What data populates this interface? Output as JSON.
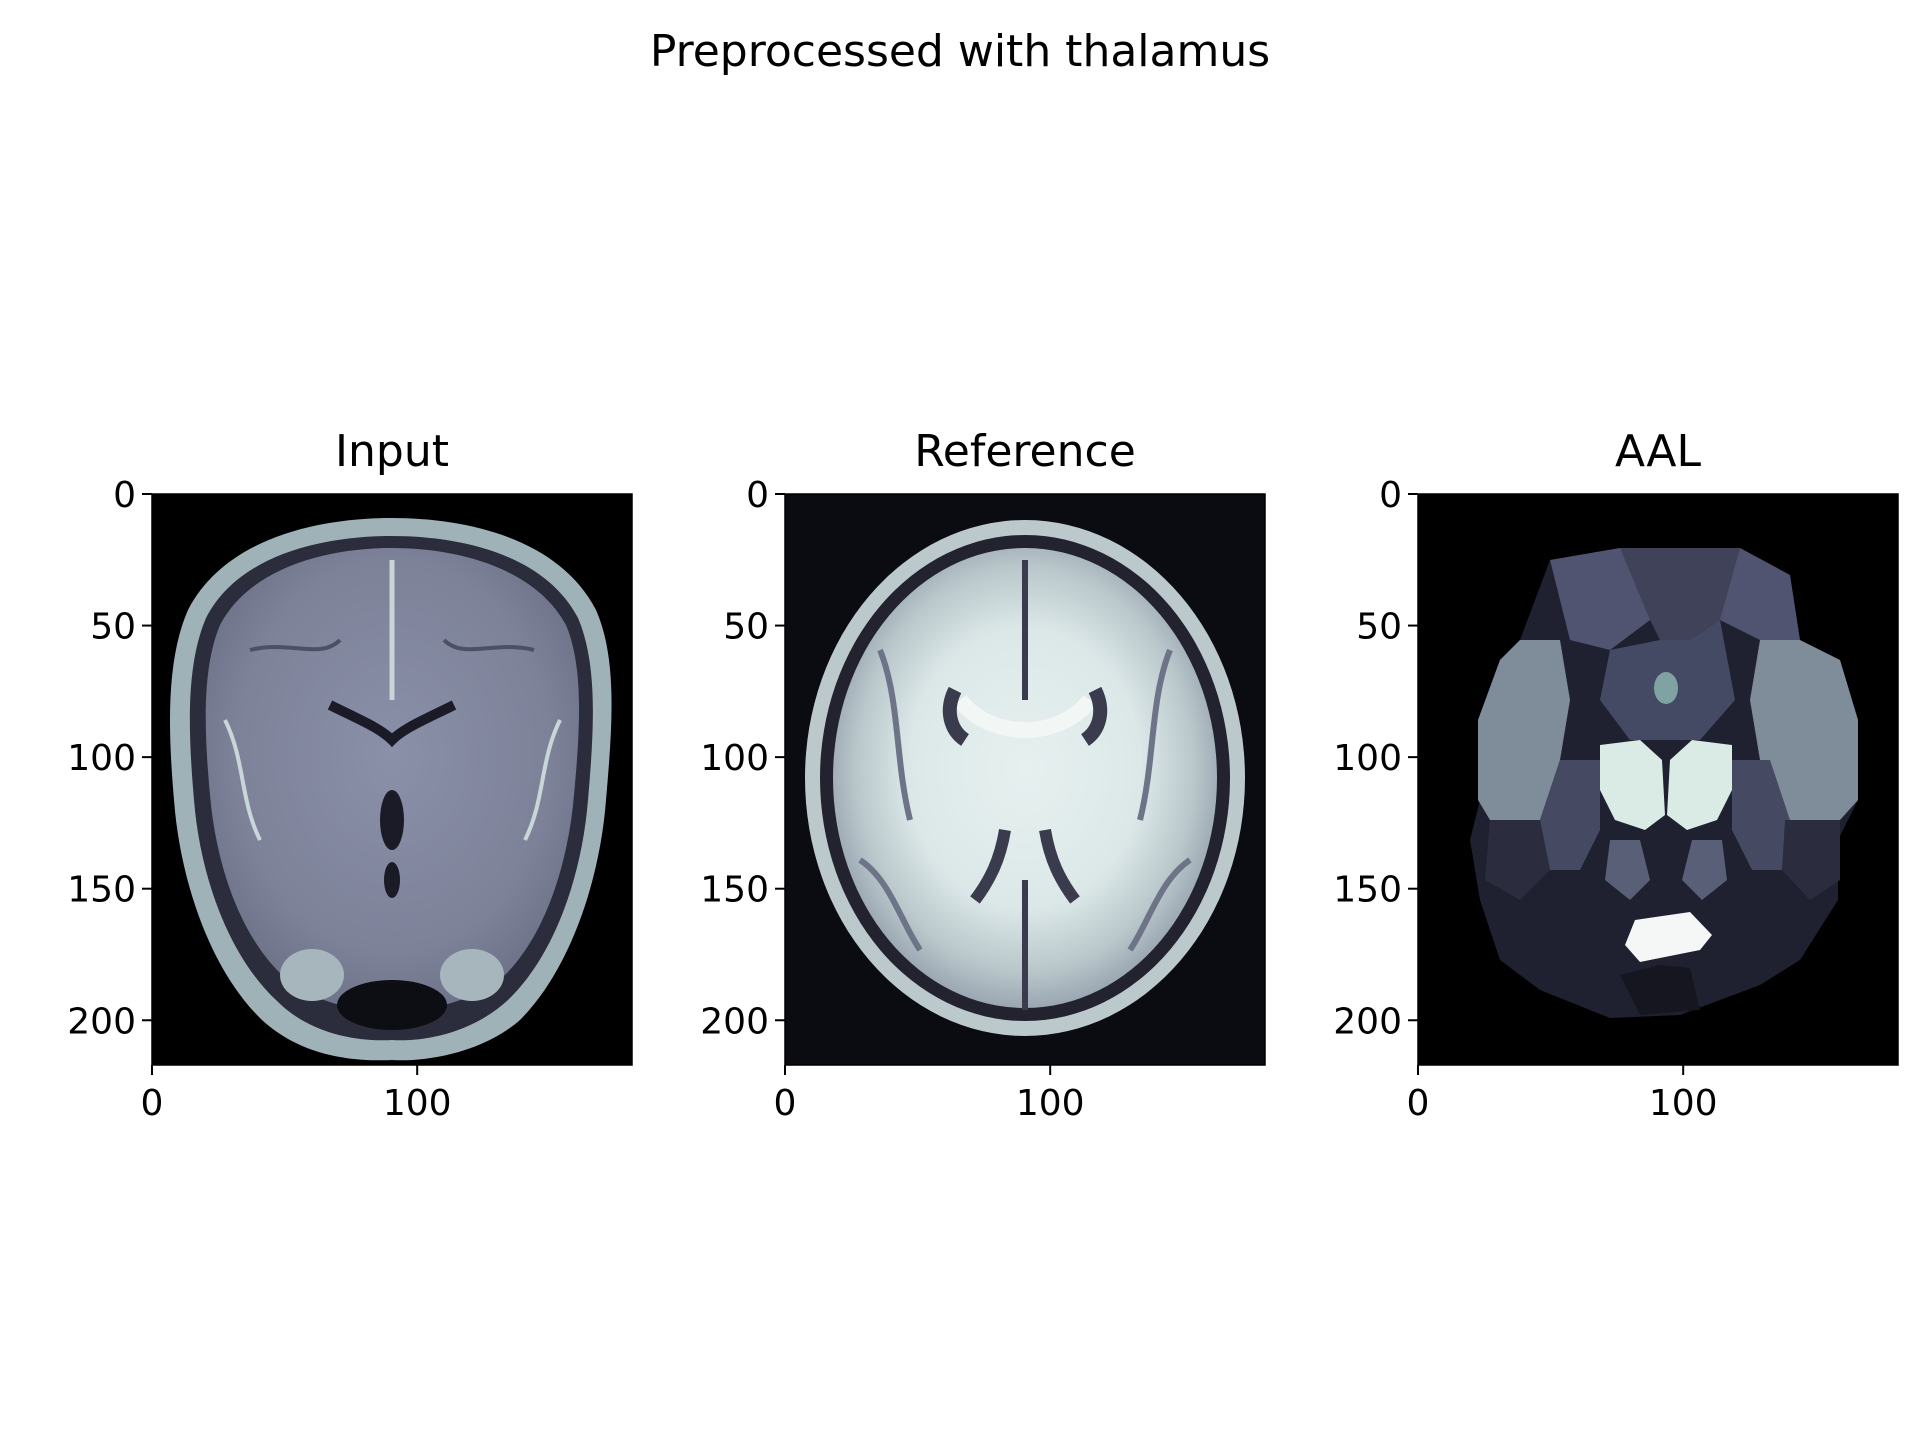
{
  "figure": {
    "suptitle": "Preprocessed with thalamus"
  },
  "chart_data": [
    {
      "type": "heatmap",
      "title": "Input",
      "image_content": "axial T1 MRI slice (input brain, bone colormap)",
      "colormap": "bone",
      "xlim": [
        0,
        181
      ],
      "ylim": [
        217,
        0
      ],
      "xticks": [
        0,
        100
      ],
      "xtick_labels": [
        "0",
        "100"
      ],
      "yticks": [
        0,
        50,
        100,
        150,
        200
      ],
      "ytick_labels": [
        "0",
        "50",
        "100",
        "150",
        "200"
      ]
    },
    {
      "type": "heatmap",
      "title": "Reference",
      "image_content": "axial MNI template brain slice (bone colormap)",
      "colormap": "bone",
      "xlim": [
        0,
        181
      ],
      "ylim": [
        217,
        0
      ],
      "xticks": [
        0,
        100
      ],
      "xtick_labels": [
        "0",
        "100"
      ],
      "yticks": [
        0,
        50,
        100,
        150,
        200
      ],
      "ytick_labels": [
        "0",
        "50",
        "100",
        "150",
        "200"
      ]
    },
    {
      "type": "heatmap",
      "title": "AAL",
      "image_content": "AAL atlas label map slice with thalamus highlighted (bone colormap)",
      "colormap": "bone",
      "xlim": [
        0,
        181
      ],
      "ylim": [
        217,
        0
      ],
      "xticks": [
        0,
        100
      ],
      "xtick_labels": [
        "0",
        "100"
      ],
      "yticks": [
        0,
        50,
        100,
        150,
        200
      ],
      "ytick_labels": [
        "0",
        "50",
        "100",
        "150",
        "200"
      ]
    }
  ]
}
